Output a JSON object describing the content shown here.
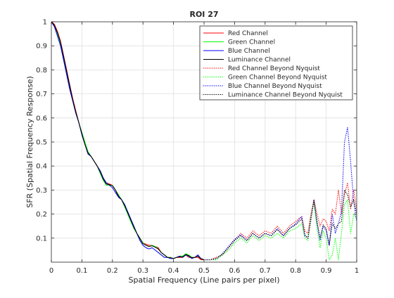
{
  "chart_data": {
    "type": "line",
    "title": "ROI 27",
    "xlabel": "Spatial Frequency (Line pairs per pixel)",
    "ylabel": "SFR (Spatial Frequency Response)",
    "xlim": [
      0,
      1
    ],
    "ylim": [
      0,
      1
    ],
    "xticks": [
      "0",
      "0.1",
      "0.2",
      "0.3",
      "0.4",
      "0.5",
      "0.6",
      "0.7",
      "0.8",
      "0.9",
      "1"
    ],
    "yticks": [
      "0.1",
      "0.2",
      "0.3",
      "0.4",
      "0.5",
      "0.6",
      "0.7",
      "0.8",
      "0.9",
      "1"
    ],
    "grid": true,
    "legend_position": "top-right",
    "series": [
      {
        "name": "Red Channel",
        "color": "#ff0000",
        "style": "solid",
        "x": [
          0,
          0.01,
          0.02,
          0.03,
          0.04,
          0.05,
          0.06,
          0.07,
          0.08,
          0.09,
          0.1,
          0.11,
          0.12,
          0.13,
          0.14,
          0.15,
          0.16,
          0.17,
          0.18,
          0.19,
          0.2,
          0.21,
          0.22,
          0.23,
          0.24,
          0.25,
          0.26,
          0.27,
          0.28,
          0.29,
          0.3,
          0.31,
          0.32,
          0.33,
          0.34,
          0.35,
          0.36,
          0.37,
          0.38,
          0.39,
          0.4,
          0.41,
          0.42,
          0.43,
          0.44,
          0.45,
          0.46,
          0.47,
          0.48,
          0.49,
          0.5
        ],
        "y": [
          1,
          0.99,
          0.96,
          0.92,
          0.86,
          0.8,
          0.74,
          0.68,
          0.63,
          0.58,
          0.53,
          0.49,
          0.45,
          0.44,
          0.42,
          0.4,
          0.38,
          0.35,
          0.33,
          0.325,
          0.32,
          0.3,
          0.27,
          0.26,
          0.23,
          0.21,
          0.18,
          0.15,
          0.12,
          0.1,
          0.08,
          0.075,
          0.07,
          0.07,
          0.065,
          0.06,
          0.04,
          0.03,
          0.02,
          0.02,
          0.015,
          0.02,
          0.02,
          0.02,
          0.03,
          0.02,
          0.02,
          0.02,
          0.02,
          0.01,
          0.01
        ]
      },
      {
        "name": "Green Channel",
        "color": "#00ff00",
        "style": "solid",
        "x": [
          0,
          0.01,
          0.02,
          0.03,
          0.04,
          0.05,
          0.06,
          0.07,
          0.08,
          0.09,
          0.1,
          0.11,
          0.12,
          0.13,
          0.14,
          0.15,
          0.16,
          0.17,
          0.18,
          0.19,
          0.2,
          0.21,
          0.22,
          0.23,
          0.24,
          0.25,
          0.26,
          0.27,
          0.28,
          0.29,
          0.3,
          0.31,
          0.32,
          0.33,
          0.34,
          0.35,
          0.36,
          0.37,
          0.38,
          0.39,
          0.4,
          0.41,
          0.42,
          0.43,
          0.44,
          0.45,
          0.46,
          0.47,
          0.48,
          0.49,
          0.5
        ],
        "y": [
          1,
          0.985,
          0.95,
          0.91,
          0.85,
          0.79,
          0.73,
          0.67,
          0.62,
          0.58,
          0.54,
          0.5,
          0.46,
          0.44,
          0.42,
          0.4,
          0.37,
          0.34,
          0.32,
          0.32,
          0.32,
          0.3,
          0.28,
          0.26,
          0.23,
          0.2,
          0.17,
          0.14,
          0.12,
          0.1,
          0.08,
          0.07,
          0.065,
          0.07,
          0.065,
          0.055,
          0.04,
          0.03,
          0.02,
          0.02,
          0.015,
          0.02,
          0.025,
          0.025,
          0.035,
          0.03,
          0.02,
          0.02,
          0.025,
          0.015,
          0.01
        ]
      },
      {
        "name": "Blue Channel",
        "color": "#0000ff",
        "style": "solid",
        "x": [
          0,
          0.01,
          0.02,
          0.03,
          0.04,
          0.05,
          0.06,
          0.07,
          0.08,
          0.09,
          0.1,
          0.11,
          0.12,
          0.13,
          0.14,
          0.15,
          0.16,
          0.17,
          0.18,
          0.19,
          0.2,
          0.21,
          0.22,
          0.23,
          0.24,
          0.25,
          0.26,
          0.27,
          0.28,
          0.29,
          0.3,
          0.31,
          0.32,
          0.33,
          0.34,
          0.35,
          0.36,
          0.37,
          0.38,
          0.39,
          0.4,
          0.41,
          0.42,
          0.43,
          0.44,
          0.45,
          0.46,
          0.47,
          0.48,
          0.49,
          0.5
        ],
        "y": [
          1,
          0.98,
          0.94,
          0.9,
          0.84,
          0.78,
          0.72,
          0.67,
          0.62,
          0.58,
          0.53,
          0.49,
          0.45,
          0.44,
          0.42,
          0.4,
          0.38,
          0.35,
          0.33,
          0.32,
          0.31,
          0.29,
          0.27,
          0.26,
          0.24,
          0.21,
          0.18,
          0.15,
          0.12,
          0.09,
          0.07,
          0.06,
          0.055,
          0.06,
          0.05,
          0.04,
          0.03,
          0.02,
          0.02,
          0.015,
          0.015,
          0.02,
          0.025,
          0.02,
          0.03,
          0.025,
          0.015,
          0.02,
          0.03,
          0.015,
          0.01
        ]
      },
      {
        "name": "Luminance Channel",
        "color": "#000000",
        "style": "solid",
        "x": [
          0,
          0.01,
          0.02,
          0.03,
          0.04,
          0.05,
          0.06,
          0.07,
          0.08,
          0.09,
          0.1,
          0.11,
          0.12,
          0.13,
          0.14,
          0.15,
          0.16,
          0.17,
          0.18,
          0.19,
          0.2,
          0.21,
          0.22,
          0.23,
          0.24,
          0.25,
          0.26,
          0.27,
          0.28,
          0.29,
          0.3,
          0.31,
          0.32,
          0.33,
          0.34,
          0.35,
          0.36,
          0.37,
          0.38,
          0.39,
          0.4,
          0.41,
          0.42,
          0.43,
          0.44,
          0.45,
          0.46,
          0.47,
          0.48,
          0.49,
          0.5
        ],
        "y": [
          1,
          0.985,
          0.955,
          0.915,
          0.855,
          0.795,
          0.735,
          0.675,
          0.625,
          0.58,
          0.535,
          0.49,
          0.455,
          0.44,
          0.42,
          0.4,
          0.375,
          0.345,
          0.325,
          0.322,
          0.318,
          0.3,
          0.275,
          0.26,
          0.235,
          0.205,
          0.175,
          0.145,
          0.12,
          0.098,
          0.077,
          0.07,
          0.065,
          0.068,
          0.062,
          0.055,
          0.04,
          0.03,
          0.02,
          0.018,
          0.015,
          0.02,
          0.022,
          0.022,
          0.032,
          0.027,
          0.018,
          0.02,
          0.025,
          0.014,
          0.01
        ]
      },
      {
        "name": "Red Channel Beyond Nyquist",
        "color": "#ff0000",
        "style": "dotted",
        "x": [
          0.5,
          0.52,
          0.54,
          0.56,
          0.58,
          0.6,
          0.62,
          0.64,
          0.66,
          0.68,
          0.7,
          0.72,
          0.74,
          0.76,
          0.78,
          0.8,
          0.82,
          0.83,
          0.84,
          0.85,
          0.86,
          0.87,
          0.88,
          0.89,
          0.9,
          0.91,
          0.92,
          0.93,
          0.94,
          0.95,
          0.96,
          0.97,
          0.98,
          0.99,
          1.0
        ],
        "y": [
          0.01,
          0.01,
          0.02,
          0.03,
          0.06,
          0.09,
          0.12,
          0.1,
          0.13,
          0.11,
          0.13,
          0.12,
          0.15,
          0.12,
          0.15,
          0.17,
          0.19,
          0.13,
          0.12,
          0.2,
          0.26,
          0.2,
          0.15,
          0.18,
          0.17,
          0.13,
          0.22,
          0.2,
          0.3,
          0.2,
          0.28,
          0.33,
          0.22,
          0.3,
          0.22
        ]
      },
      {
        "name": "Green Channel Beyond Nyquist",
        "color": "#00ff00",
        "style": "dotted",
        "x": [
          0.5,
          0.52,
          0.54,
          0.56,
          0.58,
          0.6,
          0.62,
          0.64,
          0.66,
          0.68,
          0.7,
          0.72,
          0.74,
          0.76,
          0.78,
          0.8,
          0.82,
          0.83,
          0.84,
          0.85,
          0.86,
          0.87,
          0.88,
          0.89,
          0.9,
          0.91,
          0.92,
          0.93,
          0.94,
          0.95,
          0.96,
          0.97,
          0.98,
          0.99,
          1.0
        ],
        "y": [
          0.01,
          0.01,
          0.01,
          0.03,
          0.05,
          0.08,
          0.1,
          0.08,
          0.11,
          0.09,
          0.11,
          0.1,
          0.12,
          0.1,
          0.13,
          0.14,
          0.16,
          0.1,
          0.09,
          0.17,
          0.25,
          0.14,
          0.06,
          0.13,
          0.1,
          0.01,
          0.03,
          0.1,
          0.01,
          0.12,
          0.24,
          0.26,
          0.12,
          0.2,
          0.18
        ]
      },
      {
        "name": "Blue Channel Beyond Nyquist",
        "color": "#0000ff",
        "style": "dotted",
        "x": [
          0.5,
          0.52,
          0.54,
          0.56,
          0.58,
          0.6,
          0.62,
          0.64,
          0.66,
          0.68,
          0.7,
          0.72,
          0.74,
          0.76,
          0.78,
          0.8,
          0.82,
          0.83,
          0.84,
          0.85,
          0.86,
          0.87,
          0.88,
          0.89,
          0.9,
          0.91,
          0.92,
          0.93,
          0.94,
          0.95,
          0.96,
          0.97,
          0.98,
          0.99,
          1.0
        ],
        "y": [
          0.01,
          0.01,
          0.015,
          0.035,
          0.065,
          0.095,
          0.115,
          0.09,
          0.12,
          0.1,
          0.12,
          0.11,
          0.14,
          0.11,
          0.14,
          0.16,
          0.19,
          0.11,
          0.1,
          0.18,
          0.26,
          0.16,
          0.09,
          0.15,
          0.13,
          0.07,
          0.2,
          0.12,
          0.16,
          0.21,
          0.5,
          0.56,
          0.42,
          0.25,
          0.17
        ]
      },
      {
        "name": "Luminance Channel Beyond Nyquist",
        "color": "#000000",
        "style": "dotted",
        "x": [
          0.5,
          0.52,
          0.54,
          0.56,
          0.58,
          0.6,
          0.62,
          0.64,
          0.66,
          0.68,
          0.7,
          0.72,
          0.74,
          0.76,
          0.78,
          0.8,
          0.82,
          0.83,
          0.84,
          0.85,
          0.86,
          0.87,
          0.88,
          0.89,
          0.9,
          0.91,
          0.92,
          0.93,
          0.94,
          0.95,
          0.96,
          0.97,
          0.98,
          0.99,
          1.0
        ],
        "y": [
          0.01,
          0.01,
          0.015,
          0.032,
          0.06,
          0.09,
          0.11,
          0.09,
          0.12,
          0.1,
          0.12,
          0.11,
          0.135,
          0.11,
          0.14,
          0.155,
          0.18,
          0.115,
          0.1,
          0.185,
          0.255,
          0.17,
          0.1,
          0.155,
          0.14,
          0.07,
          0.16,
          0.14,
          0.16,
          0.17,
          0.3,
          0.28,
          0.23,
          0.26,
          0.2
        ]
      }
    ]
  }
}
